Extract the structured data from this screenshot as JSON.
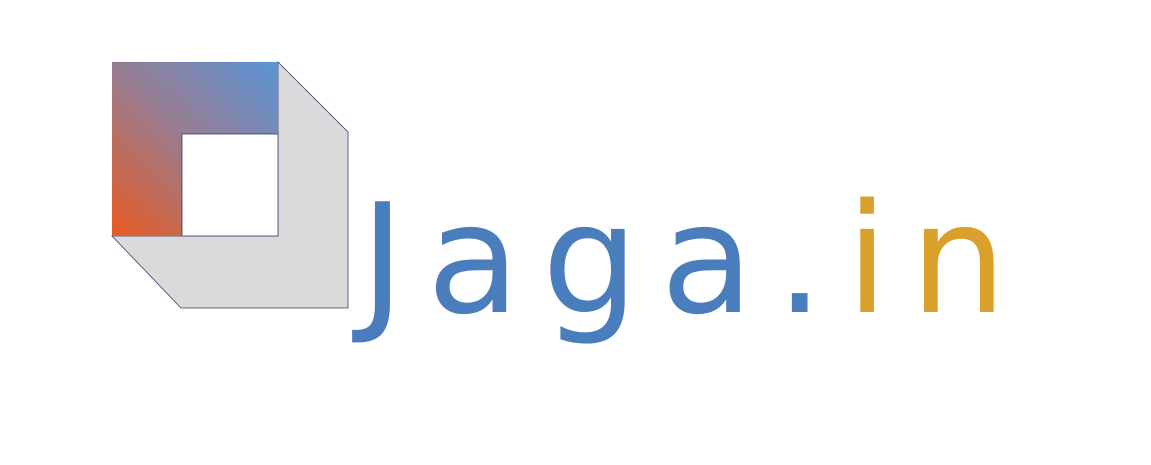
{
  "brand": {
    "wordmark": "Jaga.in",
    "name_part": "Jaga",
    "dot_part": ".",
    "tld_part": "in"
  },
  "colors": {
    "background": "#ffffff",
    "wordmark_blue": "#4a7dbc",
    "wordmark_gold": "#d9a02c",
    "mark_gradient_top_right": "#5b94d8",
    "mark_gradient_mid": "#9a7c8e",
    "mark_gradient_bottom_left": "#e85a22",
    "mark_shadow": "#dadada",
    "mark_outline": "#3a3a6a"
  },
  "icons": {
    "logo_mark": "square-frame-logo-icon"
  }
}
